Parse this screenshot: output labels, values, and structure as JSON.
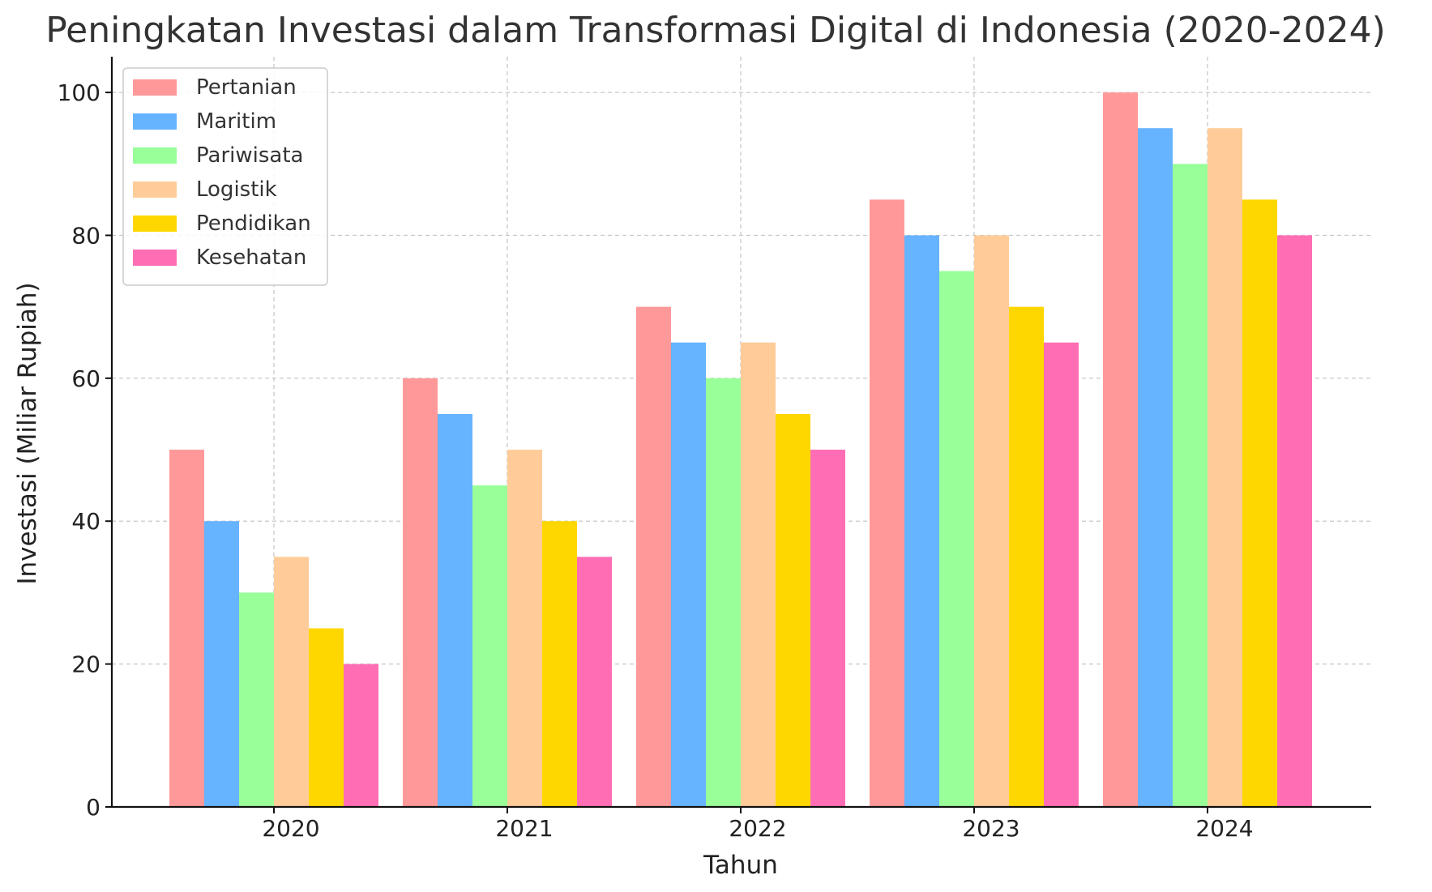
{
  "chart_data": {
    "type": "bar",
    "title": "Peningkatan Investasi dalam Transformasi Digital di Indonesia (2020-2024)",
    "xlabel": "Tahun",
    "ylabel": "Investasi (Miliar Rupiah)",
    "categories": [
      "2020",
      "2021",
      "2022",
      "2023",
      "2024"
    ],
    "ylim": [
      0,
      105
    ],
    "yticks": [
      0,
      20,
      40,
      60,
      80,
      100
    ],
    "grid": true,
    "legend_position": "top-left",
    "series": [
      {
        "name": "Pertanian",
        "color": "#ff9999",
        "values": [
          50,
          60,
          70,
          85,
          100
        ]
      },
      {
        "name": "Maritim",
        "color": "#66b3ff",
        "values": [
          40,
          55,
          65,
          80,
          95
        ]
      },
      {
        "name": "Pariwisata",
        "color": "#99ff99",
        "values": [
          30,
          45,
          60,
          75,
          90
        ]
      },
      {
        "name": "Logistik",
        "color": "#ffcc99",
        "values": [
          35,
          50,
          65,
          80,
          95
        ]
      },
      {
        "name": "Pendidikan",
        "color": "#ffd700",
        "values": [
          25,
          40,
          55,
          70,
          85
        ]
      },
      {
        "name": "Kesehatan",
        "color": "#ff6eb4",
        "values": [
          20,
          35,
          50,
          65,
          80
        ]
      }
    ]
  }
}
